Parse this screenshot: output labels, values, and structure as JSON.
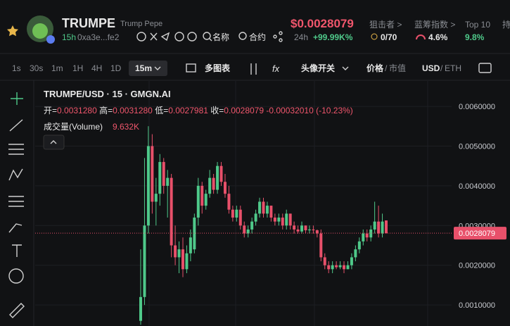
{
  "header": {
    "symbol": "TRUMPE",
    "name": "Trump Pepe",
    "age": "15h",
    "address": "0xa3e...fe2",
    "search_name": "名称",
    "search_contract": "合约",
    "price": "$0.0028079",
    "change_period": "24h",
    "change": "+99.99K%",
    "snipers_label": "狙击者 >",
    "snipers": "0/70",
    "bluechip_label": "蓝筹指数 >",
    "bluechip": "4.6%",
    "top10_label": "Top 10",
    "top10": "9.8%",
    "holders_label": "持"
  },
  "toolbar": {
    "intervals": [
      "1s",
      "30s",
      "1m",
      "1H",
      "4H",
      "1D"
    ],
    "active_interval": "15m",
    "multi_chart": "多图表",
    "avatar_toggle": "头像开关",
    "price_label": "价格",
    "price_sep": "/",
    "mcap_label": "市值",
    "usd": "USD",
    "ccy_sep": "/",
    "eth": "ETH"
  },
  "legend": {
    "title": "TRUMPE/USD · 15 · GMGN.AI",
    "open_label": "开=",
    "open": "0.0031280",
    "high_label": "高=",
    "high": "0.0031280",
    "low_label": "低=",
    "low": "0.0027981",
    "close_label": "收=",
    "close": "0.0028079",
    "change": "-0.00032010 (-10.23%)",
    "volume_label": "成交量(Volume)",
    "volume": "9.632K"
  },
  "chart_data": {
    "type": "candlestick",
    "colors": {
      "up": "#4fc98a",
      "down": "#e8506a"
    },
    "grid": true,
    "ylim": [
      0.00047,
      0.00664
    ],
    "yticks": [
      {
        "value": 0.006,
        "label": "0.0060000"
      },
      {
        "value": 0.005,
        "label": "0.0050000"
      },
      {
        "value": 0.004,
        "label": "0.0040000"
      },
      {
        "value": 0.003,
        "label": "0.0030000"
      },
      {
        "value": 0.002,
        "label": "0.0020000"
      },
      {
        "value": 0.001,
        "label": "0.0010000"
      }
    ],
    "last_price": {
      "value": 0.0028079,
      "label": "0.0028079"
    },
    "candles": [
      [
        0.0006,
        0.0024,
        0.0005,
        0.0012
      ],
      [
        0.0012,
        0.0047,
        0.001,
        0.003
      ],
      [
        0.003,
        0.0055,
        0.0028,
        0.005
      ],
      [
        0.005,
        0.0053,
        0.0033,
        0.0036
      ],
      [
        0.0036,
        0.0042,
        0.003,
        0.0038
      ],
      [
        0.0038,
        0.0048,
        0.0035,
        0.0046
      ],
      [
        0.0046,
        0.0047,
        0.0038,
        0.004
      ],
      [
        0.004,
        0.0044,
        0.0032,
        0.0042
      ],
      [
        0.0042,
        0.0043,
        0.0022,
        0.0025
      ],
      [
        0.0025,
        0.003,
        0.002,
        0.0022
      ],
      [
        0.0022,
        0.0026,
        0.0018,
        0.0024
      ],
      [
        0.0024,
        0.0027,
        0.0017,
        0.0019
      ],
      [
        0.0019,
        0.0025,
        0.0018,
        0.0023
      ],
      [
        0.0023,
        0.0029,
        0.0021,
        0.0027
      ],
      [
        0.0024,
        0.0033,
        0.0023,
        0.0032
      ],
      [
        0.0032,
        0.0042,
        0.003,
        0.004
      ],
      [
        0.004,
        0.0041,
        0.0033,
        0.0035
      ],
      [
        0.0035,
        0.0039,
        0.0034,
        0.0038
      ],
      [
        0.0038,
        0.0044,
        0.0037,
        0.0042
      ],
      [
        0.0042,
        0.0043,
        0.0038,
        0.0039
      ],
      [
        0.0039,
        0.0046,
        0.0038,
        0.0045
      ],
      [
        0.0045,
        0.0046,
        0.004,
        0.0041
      ],
      [
        0.0041,
        0.0043,
        0.0037,
        0.0038
      ],
      [
        0.0038,
        0.004,
        0.0033,
        0.0034
      ],
      [
        0.0034,
        0.0035,
        0.0031,
        0.0032
      ],
      [
        0.0032,
        0.0035,
        0.0031,
        0.0034
      ],
      [
        0.0034,
        0.0035,
        0.0029,
        0.003
      ],
      [
        0.003,
        0.0031,
        0.0027,
        0.0028
      ],
      [
        0.0028,
        0.003,
        0.0027,
        0.0029
      ],
      [
        0.0029,
        0.0032,
        0.0028,
        0.0031
      ],
      [
        0.0031,
        0.0034,
        0.003,
        0.0033
      ],
      [
        0.0033,
        0.0037,
        0.0032,
        0.0036
      ],
      [
        0.0036,
        0.0037,
        0.0032,
        0.0033
      ],
      [
        0.0033,
        0.0036,
        0.0032,
        0.0035
      ],
      [
        0.0035,
        0.0035,
        0.0031,
        0.0032
      ],
      [
        0.0032,
        0.0033,
        0.003,
        0.0031
      ],
      [
        0.0031,
        0.0033,
        0.003,
        0.0032
      ],
      [
        0.0032,
        0.0033,
        0.0029,
        0.003
      ],
      [
        0.003,
        0.0034,
        0.0029,
        0.0033
      ],
      [
        0.0033,
        0.0033,
        0.0029,
        0.003
      ],
      [
        0.003,
        0.0031,
        0.0028,
        0.0029
      ],
      [
        0.0029,
        0.003,
        0.0028,
        0.00285
      ],
      [
        0.00285,
        0.0031,
        0.0028,
        0.003
      ],
      [
        0.003,
        0.003,
        0.0028,
        0.00288
      ],
      [
        0.00288,
        0.003,
        0.0028,
        0.0029
      ],
      [
        0.0029,
        0.003,
        0.0028,
        0.00288
      ],
      [
        0.00288,
        0.0029,
        0.0027,
        0.0028
      ],
      [
        0.0028,
        0.0029,
        0.0021,
        0.0022
      ],
      [
        0.0022,
        0.0023,
        0.0019,
        0.002
      ],
      [
        0.002,
        0.0021,
        0.0018,
        0.0019
      ],
      [
        0.0019,
        0.0021,
        0.0018,
        0.002
      ],
      [
        0.002,
        0.0021,
        0.0019,
        0.00195
      ],
      [
        0.00195,
        0.0021,
        0.0019,
        0.002
      ],
      [
        0.002,
        0.0021,
        0.0018,
        0.0019
      ],
      [
        0.0019,
        0.0021,
        0.0019,
        0.002
      ],
      [
        0.002,
        0.0023,
        0.0019,
        0.0022
      ],
      [
        0.0022,
        0.0025,
        0.0021,
        0.0024
      ],
      [
        0.0024,
        0.0027,
        0.0023,
        0.0026
      ],
      [
        0.0026,
        0.0029,
        0.0025,
        0.0028
      ],
      [
        0.0028,
        0.0029,
        0.0026,
        0.0027
      ],
      [
        0.0027,
        0.003,
        0.0026,
        0.0029
      ],
      [
        0.0029,
        0.0036,
        0.0028,
        0.0031
      ],
      [
        0.0031,
        0.0035,
        0.0027,
        0.0028
      ],
      [
        0.0028,
        0.0033,
        0.0027,
        0.0031
      ],
      [
        0.003128,
        0.003128,
        0.0027981,
        0.0028079
      ]
    ]
  }
}
